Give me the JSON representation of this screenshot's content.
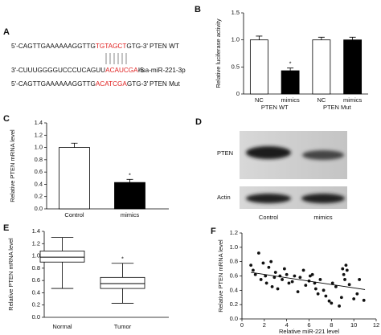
{
  "panel_a": {
    "panel": "A",
    "rows": [
      {
        "segments": [
          "5'-CAGTTGAAAAAAGGTTG",
          "TGTAGCT",
          "GTG-3'"
        ],
        "name": "PTEN WT"
      },
      {
        "segments": [
          "3'-CUUUGGGGUCCCUCAGUU",
          "ACAUCGA",
          "-5"
        ],
        "name": "hsa-miR-221-3p"
      },
      {
        "segments": [
          "5'-CAGTTGAAAAAAGGTTG",
          "ACATCGA",
          "GTG-3'"
        ],
        "name": "PTEN Mut"
      }
    ]
  },
  "panel_d": {
    "panel": "D",
    "bands": [
      "PTEN",
      "Actin"
    ],
    "lanes": [
      "Control",
      "mimics"
    ]
  },
  "chart_data": [
    {
      "type": "bar",
      "panel": "B",
      "ylabel": "Relative luciferase activity",
      "categories": [
        "NC",
        "mimics",
        "NC",
        "mimics"
      ],
      "groups": [
        "PTEN WT",
        "PTEN Mut"
      ],
      "values": [
        1.0,
        0.43,
        1.0,
        1.0
      ],
      "errors": [
        0.07,
        0.05,
        0.05,
        0.05
      ],
      "colors": [
        "#ffffff",
        "#000000",
        "#ffffff",
        "#000000"
      ],
      "significance": [
        null,
        "*",
        null,
        null
      ],
      "ylim": [
        0,
        1.5
      ],
      "yticks": [
        0,
        0.5,
        {
          "value": 1.0,
          "label": "1.0"
        },
        1.5
      ]
    },
    {
      "type": "bar",
      "panel": "C",
      "ylabel": "Relative PTEN mRNA level",
      "categories": [
        "Control",
        "mimics"
      ],
      "values": [
        1.0,
        0.43
      ],
      "errors": [
        0.07,
        0.05
      ],
      "colors": [
        "#ffffff",
        "#000000"
      ],
      "significance": [
        null,
        "*"
      ],
      "ylim": [
        0,
        1.4
      ],
      "yticks": [
        {
          "value": 0,
          "label": "0.0"
        },
        0.2,
        0.4,
        0.6,
        0.8,
        {
          "value": 1.0,
          "label": "1.0"
        },
        1.2,
        1.4
      ]
    },
    {
      "type": "box",
      "panel": "E",
      "ylabel": "Relative PTEN mRNA level",
      "categories": [
        "Normal",
        "Tumor"
      ],
      "min": [
        0.47,
        0.23
      ],
      "q1": [
        0.9,
        0.47
      ],
      "median": [
        0.98,
        0.55
      ],
      "q3": [
        1.08,
        0.65
      ],
      "max": [
        1.3,
        0.88
      ],
      "significance": [
        null,
        "*"
      ],
      "color": "#ffffff",
      "ylim": [
        0,
        1.4
      ],
      "yticks": [
        {
          "value": 0,
          "label": "0.0"
        },
        0.2,
        0.4,
        0.6,
        0.8,
        {
          "value": 1.0,
          "label": "1.0"
        },
        1.2,
        1.4
      ]
    },
    {
      "type": "scatter",
      "panel": "F",
      "ylabel": "Relative PTEN mRNA level",
      "xlabel": "Relative miR-221 level",
      "x": [
        0.8,
        1.0,
        1.2,
        1.5,
        1.7,
        1.9,
        2.1,
        2.2,
        2.4,
        2.6,
        2.7,
        2.9,
        3.0,
        3.2,
        3.4,
        3.6,
        3.8,
        4.0,
        4.2,
        4.5,
        4.7,
        5.0,
        5.2,
        5.5,
        5.7,
        6.0,
        6.1,
        6.3,
        6.5,
        6.6,
        6.8,
        7.0,
        7.3,
        7.5,
        7.8,
        8.0,
        8.1,
        8.4,
        8.7,
        8.9,
        9.0,
        9.1,
        9.2,
        9.3,
        9.4,
        9.6,
        10.0,
        10.3,
        10.5,
        10.9
      ],
      "values": [
        0.75,
        0.68,
        0.62,
        0.92,
        0.55,
        0.78,
        0.6,
        0.5,
        0.72,
        0.8,
        0.45,
        0.58,
        0.65,
        0.42,
        0.6,
        0.55,
        0.7,
        0.62,
        0.5,
        0.52,
        0.6,
        0.38,
        0.58,
        0.68,
        0.47,
        0.53,
        0.6,
        0.62,
        0.5,
        0.42,
        0.35,
        0.55,
        0.4,
        0.32,
        0.25,
        0.22,
        0.5,
        0.45,
        0.18,
        0.3,
        0.7,
        0.62,
        0.55,
        0.75,
        0.68,
        0.48,
        0.28,
        0.35,
        0.55,
        0.26
      ],
      "trendline": {
        "x": [
          0.8,
          11
        ],
        "values": [
          0.65,
          0.41
        ]
      },
      "xlim": [
        0,
        12
      ],
      "xticks": [
        0,
        2,
        4,
        6,
        8,
        10,
        12
      ],
      "ylim": [
        0,
        1.2
      ],
      "yticks": [
        {
          "value": 0,
          "label": "0.0"
        },
        0.2,
        0.4,
        0.6,
        0.8,
        {
          "value": 1.0,
          "label": "1.0"
        },
        1.2
      ]
    }
  ]
}
